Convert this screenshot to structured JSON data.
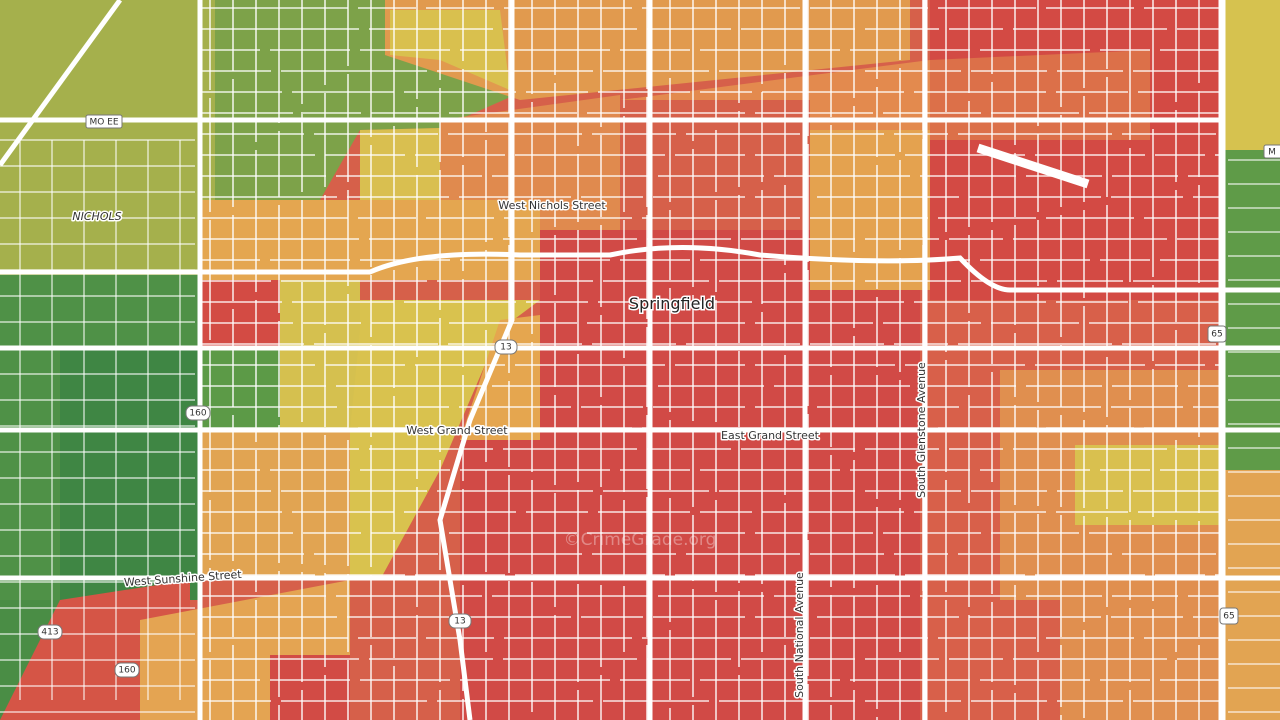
{
  "map": {
    "city": "Springfield",
    "streets": [
      "West Nichols Street",
      "West Grand Street",
      "East Grand Street",
      "West Sunshine Street",
      "South Glenstone Avenue",
      "South National Avenue"
    ],
    "places": [
      "NICHOLS"
    ],
    "shields": [
      "MO EE",
      "13",
      "13",
      "160",
      "160",
      "413",
      "65",
      "65",
      "M"
    ],
    "watermark": "©CrimeGrade.org"
  }
}
